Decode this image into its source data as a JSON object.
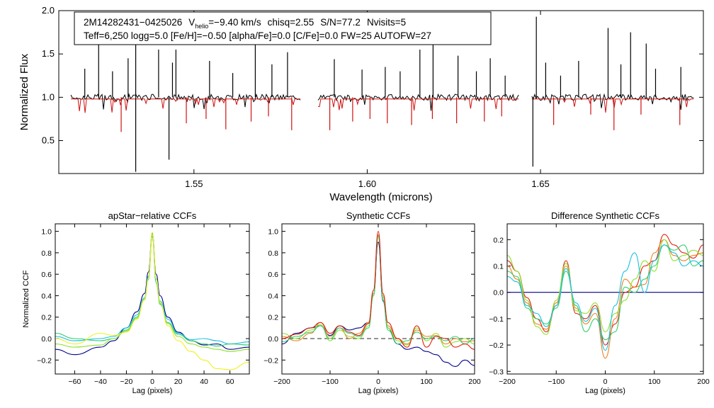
{
  "annotation": {
    "id": "2M14282431−0425026",
    "v_prefix": "V",
    "v_sub": "helio",
    "v_value": "=−9.40 km/s",
    "chisq": "chisq=2.55",
    "snr": "S/N=77.2",
    "nvisits": "Nvisits=5",
    "line2": "Teff=6,250 logg=5.0 [Fe/H]=−0.50 [alpha/Fe]=0.0 [C/Fe]=0.0 FW=25 AUTOFW=27"
  },
  "colors": {
    "observed": "#000000",
    "model": "#d01010",
    "ccf_series": [
      "#00008b",
      "#1f3fff",
      "#18c0e0",
      "#30d070",
      "#90e030",
      "#f0f020",
      "#f08020",
      "#e02010"
    ]
  },
  "chart_data": [
    {
      "type": "line",
      "name": "spectrum",
      "title": "",
      "xlabel": "Wavelength (microns)",
      "ylabel": "Normalized Flux",
      "xlim": [
        1.511,
        1.697
      ],
      "ylim": [
        0.12,
        2.0
      ],
      "xticks": [
        1.55,
        1.6,
        1.65
      ],
      "xtick_labels": [
        "1.55",
        "1.60",
        "1.65"
      ],
      "yticks": [
        0.5,
        1.0,
        1.5,
        2.0
      ],
      "ytick_labels": [
        "0.5",
        "1.0",
        "1.5",
        "2.0"
      ],
      "chips": [
        [
          1.5145,
          1.5807
        ],
        [
          1.5858,
          1.6437
        ],
        [
          1.6475,
          1.6942
        ]
      ],
      "series": [
        {
          "name": "observed",
          "continuum": 1.0
        },
        {
          "name": "model",
          "continuum": 0.98
        }
      ],
      "spikes": [
        {
          "x": 1.5185,
          "y": 1.33
        },
        {
          "x": 1.5225,
          "y": 1.72
        },
        {
          "x": 1.5265,
          "y": 1.3
        },
        {
          "x": 1.531,
          "y": 1.45
        },
        {
          "x": 1.5332,
          "y": 1.88
        },
        {
          "x": 1.5398,
          "y": 1.55
        },
        {
          "x": 1.5438,
          "y": 1.4
        },
        {
          "x": 1.5448,
          "y": 1.55
        },
        {
          "x": 1.5545,
          "y": 1.42
        },
        {
          "x": 1.5612,
          "y": 1.28
        },
        {
          "x": 1.5677,
          "y": 1.82
        },
        {
          "x": 1.5725,
          "y": 1.38
        },
        {
          "x": 1.577,
          "y": 1.52
        },
        {
          "x": 1.5905,
          "y": 1.44
        },
        {
          "x": 1.5985,
          "y": 1.32
        },
        {
          "x": 1.6052,
          "y": 1.35
        },
        {
          "x": 1.6095,
          "y": 1.3
        },
        {
          "x": 1.6152,
          "y": 1.55
        },
        {
          "x": 1.619,
          "y": 1.72
        },
        {
          "x": 1.6262,
          "y": 1.48
        },
        {
          "x": 1.6315,
          "y": 1.3
        },
        {
          "x": 1.6355,
          "y": 1.45
        },
        {
          "x": 1.6398,
          "y": 1.25
        },
        {
          "x": 1.6488,
          "y": 1.93
        },
        {
          "x": 1.6515,
          "y": 1.4
        },
        {
          "x": 1.6558,
          "y": 1.25
        },
        {
          "x": 1.661,
          "y": 1.42
        },
        {
          "x": 1.6695,
          "y": 1.8
        },
        {
          "x": 1.6732,
          "y": 1.38
        },
        {
          "x": 1.676,
          "y": 1.75
        },
        {
          "x": 1.6805,
          "y": 1.62
        },
        {
          "x": 1.6832,
          "y": 1.33
        },
        {
          "x": 1.6905,
          "y": 1.35
        }
      ],
      "dips": [
        {
          "x": 1.5332,
          "y": 0.14
        },
        {
          "x": 1.529,
          "y": 0.6
        },
        {
          "x": 1.5428,
          "y": 0.28
        },
        {
          "x": 1.5478,
          "y": 0.7
        },
        {
          "x": 1.5535,
          "y": 0.75
        },
        {
          "x": 1.5592,
          "y": 0.63
        },
        {
          "x": 1.5665,
          "y": 0.72
        },
        {
          "x": 1.5715,
          "y": 0.78
        },
        {
          "x": 1.5782,
          "y": 0.62
        },
        {
          "x": 1.5892,
          "y": 0.62
        },
        {
          "x": 1.5958,
          "y": 0.72
        },
        {
          "x": 1.6008,
          "y": 0.75
        },
        {
          "x": 1.6058,
          "y": 0.7
        },
        {
          "x": 1.6128,
          "y": 0.68
        },
        {
          "x": 1.6188,
          "y": 0.75
        },
        {
          "x": 1.6258,
          "y": 0.7
        },
        {
          "x": 1.6338,
          "y": 0.72
        },
        {
          "x": 1.6388,
          "y": 0.78
        },
        {
          "x": 1.6478,
          "y": 0.2
        },
        {
          "x": 1.6538,
          "y": 0.68
        },
        {
          "x": 1.6645,
          "y": 0.8
        },
        {
          "x": 1.6712,
          "y": 0.62
        },
        {
          "x": 1.679,
          "y": 0.8
        },
        {
          "x": 1.6902,
          "y": 0.68
        }
      ]
    },
    {
      "type": "line",
      "name": "apstar-ccf",
      "title": "apStar−relative CCFs",
      "xlabel": "Lag (pixels)",
      "ylabel": "Normalized CCF",
      "xlim": [
        -75,
        75
      ],
      "ylim": [
        -0.33,
        1.07
      ],
      "xticks": [
        -60,
        -40,
        -20,
        0,
        20,
        40,
        60
      ],
      "xtick_labels": [
        "−60",
        "−40",
        "−20",
        "0",
        "20",
        "40",
        "60"
      ],
      "yticks": [
        -0.2,
        0.0,
        0.2,
        0.4,
        0.6,
        0.8,
        1.0
      ],
      "ytick_labels": [
        "−0.2",
        "0.0",
        "0.2",
        "0.4",
        "0.6",
        "0.8",
        "1.0"
      ],
      "series": [
        {
          "name": "visit-1",
          "x": [
            -75,
            -60,
            -40,
            -30,
            -20,
            -12,
            -6,
            -3,
            0,
            3,
            6,
            12,
            20,
            30,
            40,
            50,
            60,
            75
          ],
          "y": [
            -0.1,
            -0.15,
            -0.08,
            -0.02,
            0.1,
            0.25,
            0.42,
            0.62,
            0.98,
            0.6,
            0.4,
            0.2,
            0.06,
            -0.02,
            -0.06,
            -0.05,
            -0.1,
            -0.08
          ]
        },
        {
          "name": "visit-2",
          "x": [
            -75,
            -60,
            -40,
            -30,
            -20,
            -12,
            -6,
            -3,
            0,
            3,
            6,
            12,
            20,
            30,
            40,
            50,
            60,
            75
          ],
          "y": [
            0.02,
            -0.02,
            0.0,
            0.02,
            0.1,
            0.22,
            0.38,
            0.58,
            0.95,
            0.55,
            0.35,
            0.18,
            0.05,
            -0.01,
            0.0,
            -0.02,
            -0.05,
            -0.03
          ]
        },
        {
          "name": "visit-3",
          "x": [
            -75,
            -60,
            -40,
            -30,
            -20,
            -12,
            -6,
            -3,
            0,
            3,
            6,
            12,
            20,
            30,
            40,
            50,
            60,
            75
          ],
          "y": [
            0.05,
            0.0,
            -0.02,
            0.0,
            0.08,
            0.2,
            0.36,
            0.55,
            0.96,
            0.52,
            0.32,
            0.15,
            0.04,
            -0.02,
            -0.05,
            -0.07,
            -0.05,
            -0.06
          ]
        },
        {
          "name": "visit-4",
          "x": [
            -75,
            -60,
            -40,
            -30,
            -20,
            -12,
            -6,
            -3,
            0,
            3,
            6,
            12,
            20,
            30,
            40,
            50,
            60,
            75
          ],
          "y": [
            -0.05,
            -0.08,
            -0.06,
            0.0,
            0.07,
            0.19,
            0.37,
            0.57,
            0.97,
            0.55,
            0.33,
            0.14,
            0.02,
            -0.05,
            -0.08,
            -0.1,
            -0.12,
            -0.1
          ]
        },
        {
          "name": "visit-5",
          "x": [
            -75,
            -60,
            -40,
            -30,
            -20,
            -12,
            -6,
            -3,
            0,
            3,
            6,
            12,
            20,
            30,
            40,
            50,
            60,
            75
          ],
          "y": [
            0.0,
            -0.05,
            0.05,
            0.03,
            0.06,
            0.18,
            0.36,
            0.56,
            0.99,
            0.56,
            0.34,
            0.12,
            -0.02,
            -0.12,
            -0.2,
            -0.28,
            -0.29,
            -0.22
          ]
        }
      ]
    },
    {
      "type": "line",
      "name": "synthetic-ccf",
      "title": "Synthetic CCFs",
      "xlabel": "Lag (pixels)",
      "ylabel": "",
      "xlim": [
        -200,
        200
      ],
      "ylim": [
        -0.33,
        1.07
      ],
      "xticks": [
        -200,
        -100,
        0,
        100,
        200
      ],
      "xtick_labels": [
        "−200",
        "−100",
        "0",
        "100",
        "200"
      ],
      "yticks": [
        -0.2,
        0.0,
        0.2,
        0.4,
        0.6,
        0.8,
        1.0
      ],
      "ytick_labels": [
        "−0.2",
        "0.0",
        "0.2",
        "0.4",
        "0.6",
        "0.8",
        "1.0"
      ],
      "reference_line": 0.0,
      "series": [
        {
          "name": "visit-1",
          "x": [
            -200,
            -170,
            -140,
            -120,
            -100,
            -80,
            -60,
            -40,
            -20,
            -10,
            0,
            10,
            20,
            40,
            60,
            80,
            100,
            120,
            140,
            160,
            180,
            200
          ],
          "y": [
            -0.05,
            0.05,
            0.1,
            0.12,
            0.03,
            0.12,
            0.08,
            0.1,
            0.15,
            0.4,
            0.9,
            0.35,
            0.1,
            -0.05,
            -0.1,
            -0.08,
            -0.12,
            -0.15,
            -0.22,
            -0.26,
            -0.2,
            -0.25
          ]
        },
        {
          "name": "visit-2",
          "x": [
            -200,
            -170,
            -140,
            -120,
            -100,
            -80,
            -60,
            -40,
            -20,
            -10,
            0,
            10,
            20,
            40,
            60,
            80,
            100,
            120,
            140,
            160,
            180,
            200
          ],
          "y": [
            0.02,
            -0.02,
            0.05,
            0.15,
            0.02,
            0.1,
            0.0,
            0.05,
            0.15,
            0.45,
            0.97,
            0.4,
            0.12,
            0.0,
            -0.05,
            0.08,
            0.02,
            0.03,
            -0.05,
            0.0,
            -0.03,
            -0.02
          ]
        },
        {
          "name": "visit-3",
          "x": [
            -200,
            -170,
            -140,
            -120,
            -100,
            -80,
            -60,
            -40,
            -20,
            -10,
            0,
            10,
            20,
            40,
            60,
            80,
            100,
            120,
            140,
            160,
            180,
            200
          ],
          "y": [
            0.05,
            0.0,
            0.08,
            0.13,
            -0.02,
            0.08,
            0.02,
            0.0,
            0.12,
            0.4,
            0.95,
            0.38,
            0.1,
            -0.02,
            -0.06,
            0.1,
            -0.02,
            0.05,
            -0.08,
            -0.03,
            0.0,
            -0.05
          ]
        },
        {
          "name": "visit-4",
          "x": [
            -200,
            -170,
            -140,
            -120,
            -100,
            -80,
            -60,
            -40,
            -20,
            -10,
            0,
            10,
            20,
            40,
            60,
            80,
            100,
            120,
            140,
            160,
            180,
            200
          ],
          "y": [
            -0.03,
            0.02,
            0.06,
            0.12,
            0.0,
            0.1,
            0.05,
            0.02,
            0.1,
            0.42,
            0.96,
            0.36,
            0.08,
            -0.05,
            -0.02,
            0.06,
            0.0,
            0.02,
            -0.02,
            0.02,
            -0.05,
            0.0
          ]
        },
        {
          "name": "visit-5",
          "x": [
            -200,
            -170,
            -140,
            -120,
            -100,
            -80,
            -60,
            -40,
            -20,
            -10,
            0,
            10,
            20,
            40,
            60,
            80,
            100,
            120,
            140,
            160,
            180,
            200
          ],
          "y": [
            0.0,
            0.04,
            0.1,
            0.15,
            0.05,
            0.12,
            0.06,
            0.03,
            0.14,
            0.45,
            1.0,
            0.42,
            0.15,
            0.0,
            -0.08,
            0.12,
            -0.08,
            0.02,
            0.0,
            -0.08,
            -0.05,
            -0.1
          ]
        }
      ]
    },
    {
      "type": "line",
      "name": "difference-ccf",
      "title": "Difference Synthetic CCFs",
      "xlabel": "Lag (pixels)",
      "ylabel": "",
      "xlim": [
        -200,
        200
      ],
      "ylim": [
        -0.31,
        0.26
      ],
      "xticks": [
        -200,
        -100,
        0,
        100,
        200
      ],
      "xtick_labels": [
        "−200",
        "−100",
        "0",
        "100",
        "200"
      ],
      "yticks": [
        -0.3,
        -0.2,
        -0.1,
        0.0,
        0.1,
        0.2
      ],
      "ytick_labels": [
        "−0.3",
        "−0.2",
        "−0.1",
        "0.0",
        "0.1",
        "0.2"
      ],
      "reference_line": 0.0,
      "series": [
        {
          "name": "visit-1",
          "x": [
            -200,
            -180,
            -160,
            -140,
            -120,
            -100,
            -80,
            -60,
            -40,
            -20,
            0,
            20,
            40,
            60,
            80,
            100,
            120,
            140,
            160,
            180,
            200
          ],
          "y": [
            0.12,
            0.08,
            -0.02,
            -0.1,
            -0.15,
            -0.05,
            0.12,
            -0.08,
            -0.1,
            -0.05,
            -0.2,
            -0.12,
            0.0,
            0.02,
            0.1,
            0.12,
            0.22,
            0.18,
            0.15,
            0.13,
            0.18
          ]
        },
        {
          "name": "visit-2",
          "x": [
            -200,
            -180,
            -160,
            -140,
            -120,
            -100,
            -80,
            -60,
            -40,
            -20,
            0,
            20,
            40,
            60,
            80,
            100,
            120,
            140,
            160,
            180,
            200
          ],
          "y": [
            0.1,
            0.05,
            -0.04,
            -0.12,
            -0.14,
            -0.04,
            0.1,
            -0.06,
            -0.12,
            -0.08,
            -0.25,
            -0.1,
            0.05,
            0.02,
            0.03,
            0.15,
            0.2,
            0.14,
            0.12,
            0.14,
            0.15
          ]
        },
        {
          "name": "visit-3",
          "x": [
            -200,
            -180,
            -160,
            -140,
            -120,
            -100,
            -80,
            -60,
            -40,
            -20,
            0,
            20,
            40,
            60,
            80,
            100,
            120,
            140,
            160,
            180,
            200
          ],
          "y": [
            0.08,
            0.06,
            -0.06,
            -0.1,
            -0.12,
            -0.06,
            0.08,
            -0.05,
            -0.15,
            -0.1,
            -0.18,
            -0.15,
            0.02,
            0.0,
            0.05,
            0.1,
            0.18,
            0.16,
            0.18,
            0.1,
            0.12
          ]
        },
        {
          "name": "visit-4",
          "x": [
            -200,
            -180,
            -160,
            -140,
            -120,
            -100,
            -80,
            -60,
            -40,
            -20,
            0,
            20,
            40,
            60,
            80,
            100,
            120,
            140,
            160,
            180,
            200
          ],
          "y": [
            0.14,
            0.08,
            -0.03,
            -0.13,
            -0.16,
            -0.03,
            0.11,
            -0.07,
            -0.08,
            -0.04,
            -0.15,
            -0.08,
            -0.03,
            0.05,
            0.12,
            0.08,
            0.2,
            0.12,
            0.14,
            0.16,
            0.14
          ]
        },
        {
          "name": "visit-5",
          "x": [
            -200,
            -180,
            -160,
            -140,
            -120,
            -100,
            -80,
            -60,
            -40,
            -20,
            0,
            20,
            40,
            60,
            80,
            100,
            120,
            140,
            160,
            180,
            200
          ],
          "y": [
            0.06,
            0.04,
            -0.05,
            -0.08,
            -0.13,
            -0.05,
            0.09,
            -0.04,
            -0.11,
            -0.06,
            -0.22,
            -0.05,
            0.08,
            0.15,
            0.0,
            0.12,
            0.18,
            0.15,
            0.1,
            0.12,
            0.1
          ]
        }
      ]
    }
  ]
}
